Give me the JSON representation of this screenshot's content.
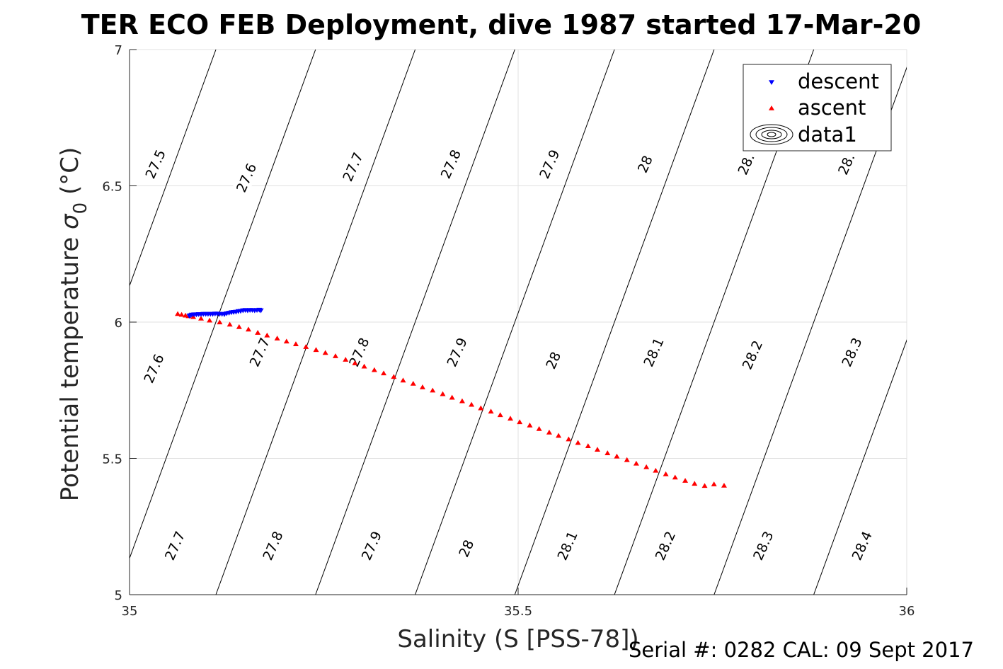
{
  "figure": {
    "title": "TER ECO FEB Deployment, dive 1987 started 17-Mar-20",
    "footer": "Serial #: 0282  CAL: 09 Sept 2017"
  },
  "chart_data": {
    "type": "scatter",
    "title": "TER ECO FEB Deployment, dive 1987 started 17-Mar-20",
    "xlabel": "Salinity (S [PSS-78])",
    "ylabel_main": "Potential temperature ",
    "ylabel_sym": "σ",
    "ylabel_sub": "0",
    "ylabel_unit": " (°C)",
    "xlim": [
      35,
      36
    ],
    "ylim": [
      5,
      7
    ],
    "xticks": [
      "35",
      "35.5",
      "36"
    ],
    "yticks": [
      "5",
      "5.5",
      "6",
      "6.5",
      "7"
    ],
    "grid": true,
    "legend_position": "top-right",
    "legend": [
      "descent",
      "ascent",
      "data1"
    ],
    "contour_labels": [
      {
        "text": "27.5",
        "s": 35.033,
        "t": 6.58
      },
      {
        "text": "27.6",
        "s": 35.15,
        "t": 6.53
      },
      {
        "text": "27.7",
        "s": 35.287,
        "t": 6.57
      },
      {
        "text": "27.8",
        "s": 35.413,
        "t": 6.58
      },
      {
        "text": "27.9",
        "s": 35.54,
        "t": 6.58
      },
      {
        "text": "28",
        "s": 35.663,
        "t": 6.58
      },
      {
        "text": "28.",
        "s": 35.793,
        "t": 6.58
      },
      {
        "text": "28.",
        "s": 35.922,
        "t": 6.58
      },
      {
        "text": "27.6",
        "s": 35.031,
        "t": 5.83
      },
      {
        "text": "27.7",
        "s": 35.167,
        "t": 5.89
      },
      {
        "text": "27.8",
        "s": 35.295,
        "t": 5.89
      },
      {
        "text": "27.9",
        "s": 35.421,
        "t": 5.89
      },
      {
        "text": "28",
        "s": 35.545,
        "t": 5.86
      },
      {
        "text": "28.1",
        "s": 35.674,
        "t": 5.89
      },
      {
        "text": "28.2",
        "s": 35.801,
        "t": 5.88
      },
      {
        "text": "28.3",
        "s": 35.929,
        "t": 5.89
      },
      {
        "text": "27.7",
        "s": 35.058,
        "t": 5.18
      },
      {
        "text": "27.8",
        "s": 35.184,
        "t": 5.18
      },
      {
        "text": "27.9",
        "s": 35.311,
        "t": 5.18
      },
      {
        "text": "28",
        "s": 35.433,
        "t": 5.17
      },
      {
        "text": "28.1",
        "s": 35.563,
        "t": 5.18
      },
      {
        "text": "28.2",
        "s": 35.689,
        "t": 5.18
      },
      {
        "text": "28.3",
        "s": 35.815,
        "t": 5.18
      },
      {
        "text": "28.4",
        "s": 35.942,
        "t": 5.18
      }
    ],
    "series": [
      {
        "name": "descent",
        "marker": "triangle-down",
        "color": "#0000ff",
        "x": [
          35.077,
          35.078,
          35.08,
          35.083,
          35.086,
          35.089,
          35.092,
          35.095,
          35.098,
          35.101,
          35.104,
          35.107,
          35.11,
          35.113,
          35.116,
          35.119,
          35.122,
          35.125,
          35.128,
          35.131,
          35.134,
          35.137,
          35.14,
          35.143,
          35.146,
          35.149,
          35.152,
          35.155,
          35.158,
          35.161,
          35.164,
          35.167,
          35.169
        ],
        "y": [
          6.023,
          6.025,
          6.027,
          6.028,
          6.028,
          6.029,
          6.029,
          6.03,
          6.03,
          6.03,
          6.03,
          6.03,
          6.031,
          6.031,
          6.03,
          6.03,
          6.029,
          6.032,
          6.034,
          6.036,
          6.037,
          6.038,
          6.04,
          6.041,
          6.043,
          6.044,
          6.043,
          6.044,
          6.044,
          6.043,
          6.044,
          6.045,
          6.043
        ]
      },
      {
        "name": "ascent",
        "marker": "triangle-up",
        "color": "#ff0000",
        "x": [
          35.062,
          35.067,
          35.072,
          35.076,
          35.082,
          35.092,
          35.103,
          35.116,
          35.129,
          35.141,
          35.153,
          35.165,
          35.177,
          35.19,
          35.202,
          35.214,
          35.227,
          35.24,
          35.252,
          35.265,
          35.278,
          35.29,
          35.302,
          35.315,
          35.327,
          35.34,
          35.352,
          35.365,
          35.377,
          35.39,
          35.403,
          35.415,
          35.428,
          35.44,
          35.452,
          35.465,
          35.477,
          35.49,
          35.502,
          35.515,
          35.527,
          35.54,
          35.552,
          35.565,
          35.577,
          35.59,
          35.602,
          35.615,
          35.627,
          35.64,
          35.652,
          35.665,
          35.677,
          35.69,
          35.702,
          35.715,
          35.727,
          35.74,
          35.752,
          35.765
        ],
        "y": [
          6.03,
          6.027,
          6.024,
          6.022,
          6.019,
          6.013,
          6.006,
          5.999,
          5.991,
          5.982,
          5.973,
          5.961,
          5.951,
          5.94,
          5.929,
          5.919,
          5.909,
          5.898,
          5.887,
          5.875,
          5.862,
          5.849,
          5.837,
          5.824,
          5.812,
          5.799,
          5.786,
          5.774,
          5.761,
          5.749,
          5.736,
          5.723,
          5.71,
          5.697,
          5.684,
          5.672,
          5.659,
          5.646,
          5.633,
          5.621,
          5.608,
          5.595,
          5.583,
          5.57,
          5.557,
          5.545,
          5.532,
          5.519,
          5.507,
          5.494,
          5.481,
          5.468,
          5.455,
          5.442,
          5.43,
          5.418,
          5.407,
          5.399,
          5.405,
          5.4
        ]
      },
      {
        "name": "data1",
        "type": "density-isopycnal-contours",
        "levels": [
          27.5,
          27.6,
          27.7,
          27.8,
          27.9,
          28.0,
          28.1,
          28.2,
          28.3,
          28.4
        ]
      }
    ]
  }
}
